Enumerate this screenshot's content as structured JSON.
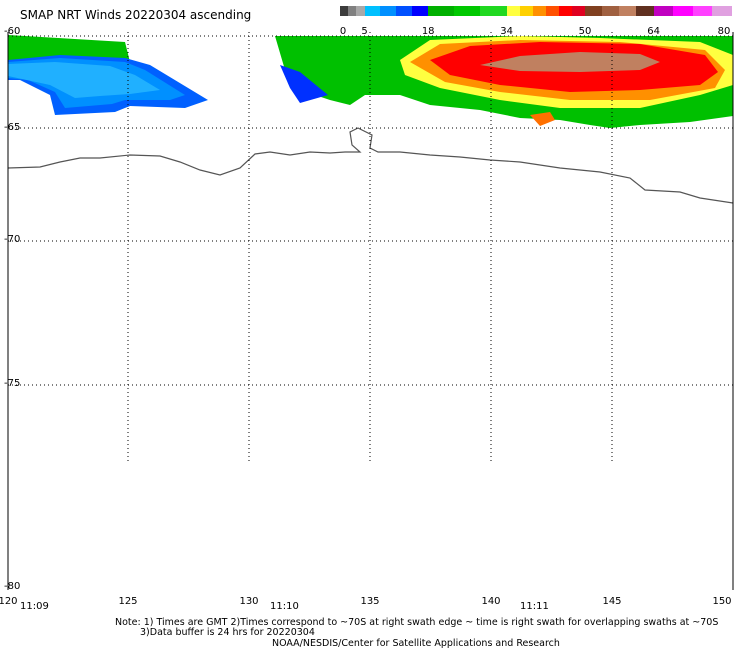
{
  "title": "SMAP NRT Winds 20220304 ascending",
  "colorbar": {
    "segments": [
      {
        "from": 0,
        "to": 5,
        "colors": [
          "#3c3c3c",
          "#808080",
          "#a8a8a8"
        ]
      },
      {
        "from": 5,
        "to": 18,
        "colors": [
          "#00c0ff",
          "#0090ff",
          "#0050ff",
          "#0000ff"
        ]
      },
      {
        "from": 18,
        "to": 34,
        "colors": [
          "#00b000",
          "#00c800",
          "#20d820"
        ]
      },
      {
        "from": 34,
        "to": 50,
        "colors": [
          "#ffff40",
          "#ffd000",
          "#ff9000",
          "#ff5000",
          "#ff0000",
          "#e00020"
        ]
      },
      {
        "from": 50,
        "to": 64,
        "colors": [
          "#804020",
          "#a06040",
          "#c08060",
          "#603020"
        ]
      },
      {
        "from": 64,
        "to": 80,
        "colors": [
          "#c000c0",
          "#ff00ff",
          "#ff40ff",
          "#e0a0e0"
        ]
      }
    ],
    "tick_labels": [
      "0",
      "5",
      "18",
      "34",
      "50",
      "64",
      "80"
    ]
  },
  "map": {
    "lon_range": [
      120,
      150
    ],
    "lat_range": [
      -80,
      -60
    ],
    "lat_labels": [
      "-60",
      "-65",
      "-70",
      "-75",
      "-80"
    ],
    "lon_labels": [
      "120",
      "125",
      "130",
      "135",
      "140",
      "145",
      "150"
    ],
    "time_labels": [
      "11:09",
      "11:10",
      "11:11"
    ]
  },
  "notes": {
    "line1": "Note: 1) Times are GMT 2)Times correspond to ~70S at right swath edge ~ time is right swath for overlapping swaths at ~70S",
    "line2": "3)Data buffer is 24 hrs for 20220304",
    "line3": "NOAA/NESDIS/Center for Satellite Applications and Research"
  }
}
